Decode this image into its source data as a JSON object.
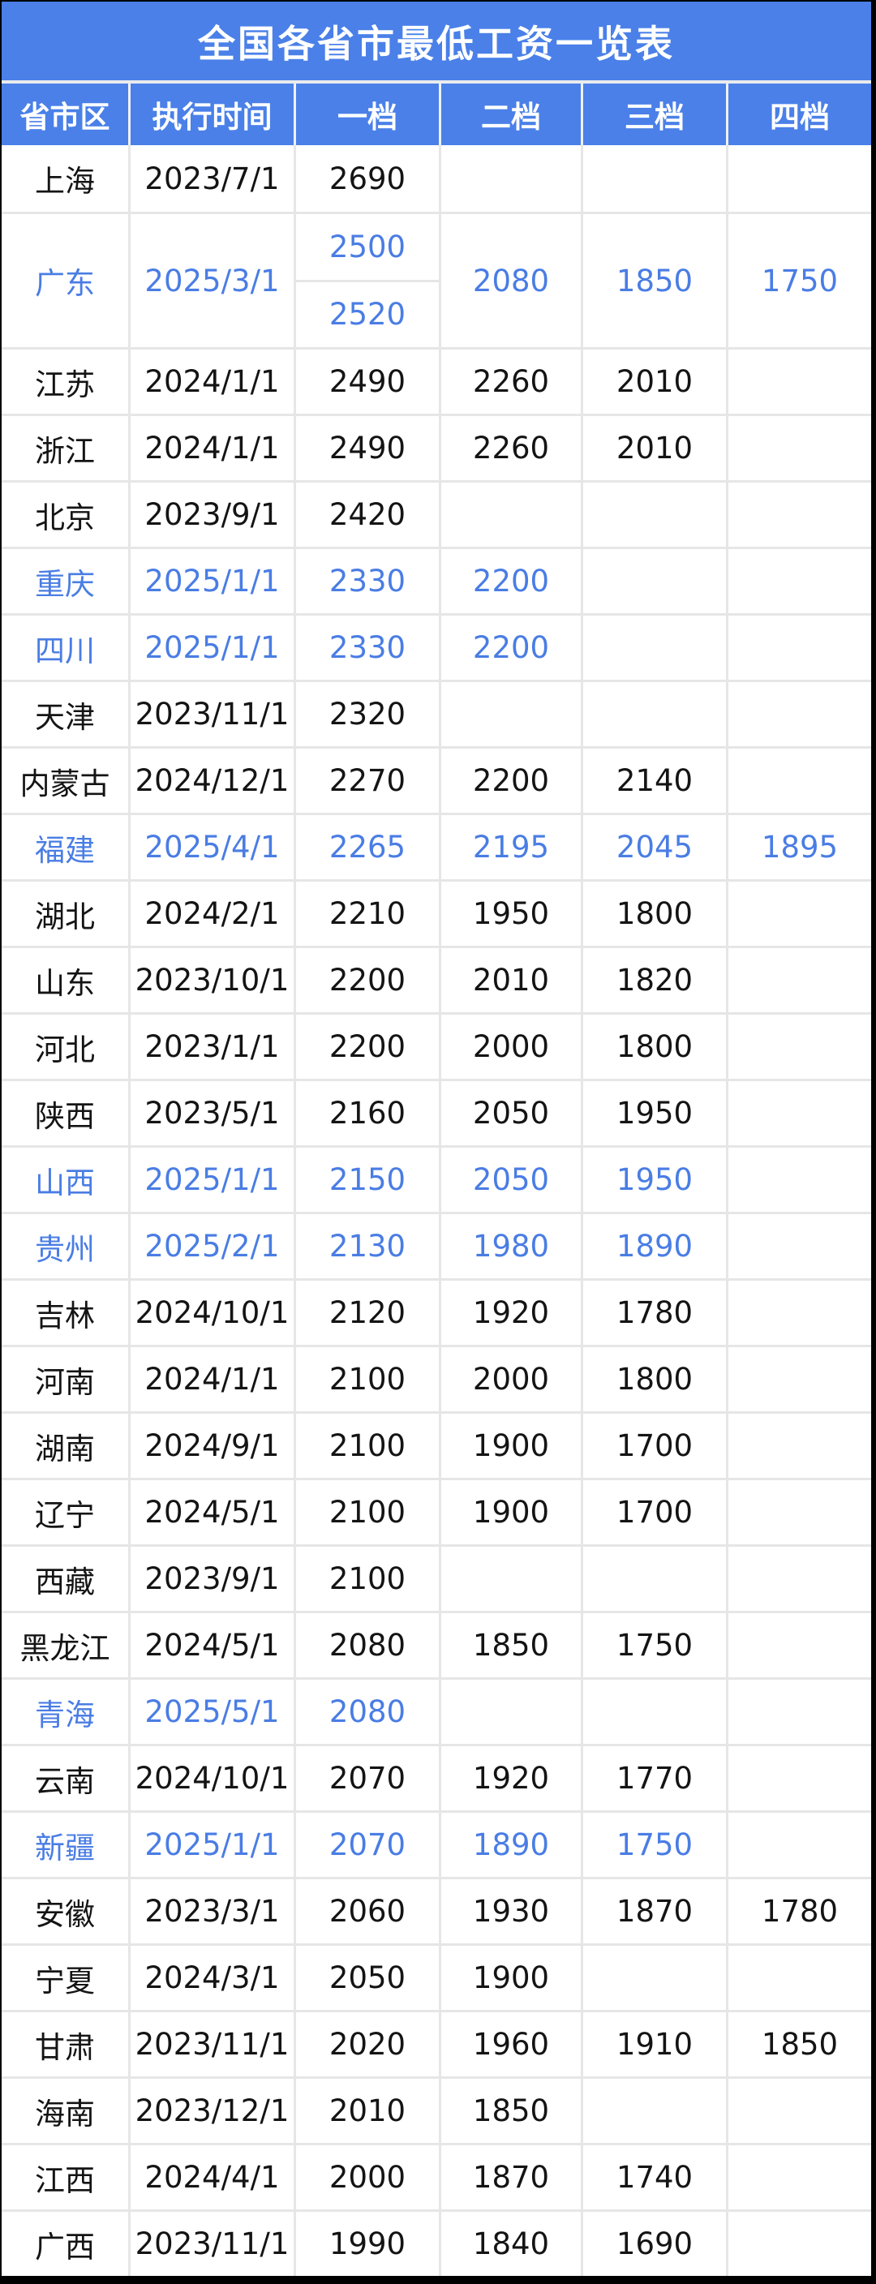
{
  "chart_data": {
    "type": "table",
    "title": "全国各省市最低工资一览表",
    "columns": [
      "省市区",
      "执行时间",
      "一档",
      "二档",
      "三档",
      "四档"
    ],
    "rows": [
      {
        "region": "上海",
        "date": "2023/7/1",
        "tier1": "2690",
        "tier2": "",
        "tier3": "",
        "tier4": "",
        "highlight": false
      },
      {
        "region": "广东",
        "date": "2025/3/1",
        "tier1": "2500",
        "tier1b": "2520",
        "tier2": "2080",
        "tier3": "1850",
        "tier4": "1750",
        "highlight": true
      },
      {
        "region": "江苏",
        "date": "2024/1/1",
        "tier1": "2490",
        "tier2": "2260",
        "tier3": "2010",
        "tier4": "",
        "highlight": false
      },
      {
        "region": "浙江",
        "date": "2024/1/1",
        "tier1": "2490",
        "tier2": "2260",
        "tier3": "2010",
        "tier4": "",
        "highlight": false
      },
      {
        "region": "北京",
        "date": "2023/9/1",
        "tier1": "2420",
        "tier2": "",
        "tier3": "",
        "tier4": "",
        "highlight": false
      },
      {
        "region": "重庆",
        "date": "2025/1/1",
        "tier1": "2330",
        "tier2": "2200",
        "tier3": "",
        "tier4": "",
        "highlight": true
      },
      {
        "region": "四川",
        "date": "2025/1/1",
        "tier1": "2330",
        "tier2": "2200",
        "tier3": "",
        "tier4": "",
        "highlight": true
      },
      {
        "region": "天津",
        "date": "2023/11/1",
        "tier1": "2320",
        "tier2": "",
        "tier3": "",
        "tier4": "",
        "highlight": false
      },
      {
        "region": "内蒙古",
        "date": "2024/12/1",
        "tier1": "2270",
        "tier2": "2200",
        "tier3": "2140",
        "tier4": "",
        "highlight": false
      },
      {
        "region": "福建",
        "date": "2025/4/1",
        "tier1": "2265",
        "tier2": "2195",
        "tier3": "2045",
        "tier4": "1895",
        "highlight": true
      },
      {
        "region": "湖北",
        "date": "2024/2/1",
        "tier1": "2210",
        "tier2": "1950",
        "tier3": "1800",
        "tier4": "",
        "highlight": false
      },
      {
        "region": "山东",
        "date": "2023/10/1",
        "tier1": "2200",
        "tier2": "2010",
        "tier3": "1820",
        "tier4": "",
        "highlight": false
      },
      {
        "region": "河北",
        "date": "2023/1/1",
        "tier1": "2200",
        "tier2": "2000",
        "tier3": "1800",
        "tier4": "",
        "highlight": false
      },
      {
        "region": "陕西",
        "date": "2023/5/1",
        "tier1": "2160",
        "tier2": "2050",
        "tier3": "1950",
        "tier4": "",
        "highlight": false
      },
      {
        "region": "山西",
        "date": "2025/1/1",
        "tier1": "2150",
        "tier2": "2050",
        "tier3": "1950",
        "tier4": "",
        "highlight": true
      },
      {
        "region": "贵州",
        "date": "2025/2/1",
        "tier1": "2130",
        "tier2": "1980",
        "tier3": "1890",
        "tier4": "",
        "highlight": true
      },
      {
        "region": "吉林",
        "date": "2024/10/1",
        "tier1": "2120",
        "tier2": "1920",
        "tier3": "1780",
        "tier4": "",
        "highlight": false
      },
      {
        "region": "河南",
        "date": "2024/1/1",
        "tier1": "2100",
        "tier2": "2000",
        "tier3": "1800",
        "tier4": "",
        "highlight": false
      },
      {
        "region": "湖南",
        "date": "2024/9/1",
        "tier1": "2100",
        "tier2": "1900",
        "tier3": "1700",
        "tier4": "",
        "highlight": false
      },
      {
        "region": "辽宁",
        "date": "2024/5/1",
        "tier1": "2100",
        "tier2": "1900",
        "tier3": "1700",
        "tier4": "",
        "highlight": false
      },
      {
        "region": "西藏",
        "date": "2023/9/1",
        "tier1": "2100",
        "tier2": "",
        "tier3": "",
        "tier4": "",
        "highlight": false
      },
      {
        "region": "黑龙江",
        "date": "2024/5/1",
        "tier1": "2080",
        "tier2": "1850",
        "tier3": "1750",
        "tier4": "",
        "highlight": false
      },
      {
        "region": "青海",
        "date": "2025/5/1",
        "tier1": "2080",
        "tier2": "",
        "tier3": "",
        "tier4": "",
        "highlight": true
      },
      {
        "region": "云南",
        "date": "2024/10/1",
        "tier1": "2070",
        "tier2": "1920",
        "tier3": "1770",
        "tier4": "",
        "highlight": false
      },
      {
        "region": "新疆",
        "date": "2025/1/1",
        "tier1": "2070",
        "tier2": "1890",
        "tier3": "1750",
        "tier4": "",
        "highlight": true
      },
      {
        "region": "安徽",
        "date": "2023/3/1",
        "tier1": "2060",
        "tier2": "1930",
        "tier3": "1870",
        "tier4": "1780",
        "highlight": false
      },
      {
        "region": "宁夏",
        "date": "2024/3/1",
        "tier1": "2050",
        "tier2": "1900",
        "tier3": "",
        "tier4": "",
        "highlight": false
      },
      {
        "region": "甘肃",
        "date": "2023/11/1",
        "tier1": "2020",
        "tier2": "1960",
        "tier3": "1910",
        "tier4": "1850",
        "highlight": false
      },
      {
        "region": "海南",
        "date": "2023/12/1",
        "tier1": "2010",
        "tier2": "1850",
        "tier3": "",
        "tier4": "",
        "highlight": false
      },
      {
        "region": "江西",
        "date": "2024/4/1",
        "tier1": "2000",
        "tier2": "1870",
        "tier3": "1740",
        "tier4": "",
        "highlight": false
      },
      {
        "region": "广西",
        "date": "2023/11/1",
        "tier1": "1990",
        "tier2": "1840",
        "tier3": "1690",
        "tier4": "",
        "highlight": false
      }
    ]
  },
  "colors": {
    "header_blue": "#4a80e8",
    "highlight_blue": "#4a7de4",
    "body_text": "#141414",
    "grid_gray": "#e6e6e6",
    "frame_black": "#000000",
    "header_text": "#ffffff"
  }
}
